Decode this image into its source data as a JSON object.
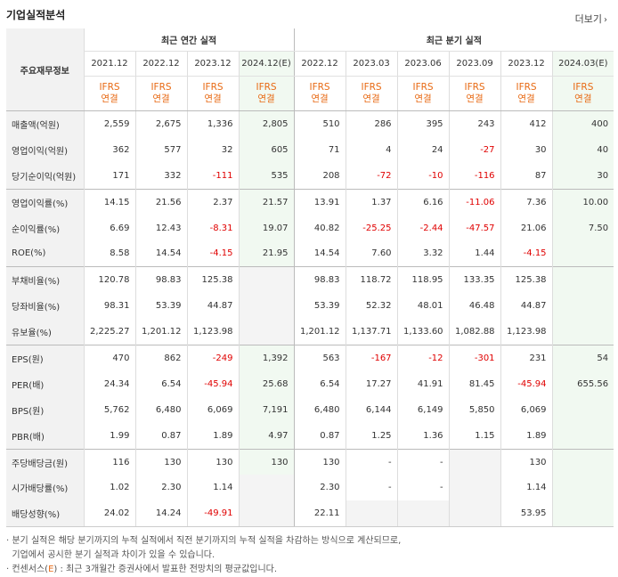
{
  "title": "기업실적분석",
  "more_label": "더보기",
  "corner_label": "주요재무정보",
  "annual_header": "최근 연간 실적",
  "quarter_header": "최근 분기 실적",
  "periods": [
    "2021.12",
    "2022.12",
    "2023.12",
    "2024.12(E)",
    "2022.12",
    "2023.03",
    "2023.06",
    "2023.09",
    "2023.12",
    "2024.03(E)"
  ],
  "ifrs": [
    "IFRS",
    "연결"
  ],
  "rows": [
    {
      "label": "매출액(억원)",
      "values": [
        "2,559",
        "2,675",
        "1,336",
        "2,805",
        "510",
        "286",
        "395",
        "243",
        "412",
        "400"
      ]
    },
    {
      "label": "영업이익(억원)",
      "values": [
        "362",
        "577",
        "32",
        "605",
        "71",
        "4",
        "24",
        "-27",
        "30",
        "40"
      ]
    },
    {
      "label": "당기순이익(억원)",
      "values": [
        "171",
        "332",
        "-111",
        "535",
        "208",
        "-72",
        "-10",
        "-116",
        "87",
        "30"
      ]
    },
    {
      "label": "영업이익률(%)",
      "values": [
        "14.15",
        "21.56",
        "2.37",
        "21.57",
        "13.91",
        "1.37",
        "6.16",
        "-11.06",
        "7.36",
        "10.00"
      ]
    },
    {
      "label": "순이익률(%)",
      "values": [
        "6.69",
        "12.43",
        "-8.31",
        "19.07",
        "40.82",
        "-25.25",
        "-2.44",
        "-47.57",
        "21.06",
        "7.50"
      ]
    },
    {
      "label": "ROE(%)",
      "values": [
        "8.58",
        "14.54",
        "-4.15",
        "21.95",
        "14.54",
        "7.60",
        "3.32",
        "1.44",
        "-4.15",
        ""
      ]
    },
    {
      "label": "부채비율(%)",
      "values": [
        "120.78",
        "98.83",
        "125.38",
        "",
        "98.83",
        "118.72",
        "118.95",
        "133.35",
        "125.38",
        ""
      ]
    },
    {
      "label": "당좌비율(%)",
      "values": [
        "98.31",
        "53.39",
        "44.87",
        "",
        "53.39",
        "52.32",
        "48.01",
        "46.48",
        "44.87",
        ""
      ]
    },
    {
      "label": "유보율(%)",
      "values": [
        "2,225.27",
        "1,201.12",
        "1,123.98",
        "",
        "1,201.12",
        "1,137.71",
        "1,133.60",
        "1,082.88",
        "1,123.98",
        ""
      ]
    },
    {
      "label": "EPS(원)",
      "values": [
        "470",
        "862",
        "-249",
        "1,392",
        "563",
        "-167",
        "-12",
        "-301",
        "231",
        "54"
      ]
    },
    {
      "label": "PER(배)",
      "values": [
        "24.34",
        "6.54",
        "-45.94",
        "25.68",
        "6.54",
        "17.27",
        "41.91",
        "81.45",
        "-45.94",
        "655.56"
      ]
    },
    {
      "label": "BPS(원)",
      "values": [
        "5,762",
        "6,480",
        "6,069",
        "7,191",
        "6,480",
        "6,144",
        "6,149",
        "5,850",
        "6,069",
        ""
      ]
    },
    {
      "label": "PBR(배)",
      "values": [
        "1.99",
        "0.87",
        "1.89",
        "4.97",
        "0.87",
        "1.25",
        "1.36",
        "1.15",
        "1.89",
        ""
      ]
    },
    {
      "label": "주당배당금(원)",
      "values": [
        "116",
        "130",
        "130",
        "130",
        "130",
        "-",
        "-",
        "",
        "130",
        ""
      ]
    },
    {
      "label": "시가배당률(%)",
      "values": [
        "1.02",
        "2.30",
        "1.14",
        "",
        "2.30",
        "-",
        "-",
        "",
        "1.14",
        ""
      ]
    },
    {
      "label": "배당성향(%)",
      "values": [
        "24.02",
        "14.24",
        "-49.91",
        "",
        "22.11",
        "",
        "",
        "",
        "53.95",
        ""
      ]
    }
  ],
  "notes": [
    "분기 실적은 해당 분기까지의 누적 실적에서 직전 분기까지의 누적 실적을 차감하는 방식으로 계산되므로,",
    "기업에서 공시한 분기 실적과 차이가 있을 수 있습니다.",
    "컨센서스(",
    "E",
    ") : 최근 3개월간 증권사에서 발표한 전망치의 평균값입니다."
  ]
}
